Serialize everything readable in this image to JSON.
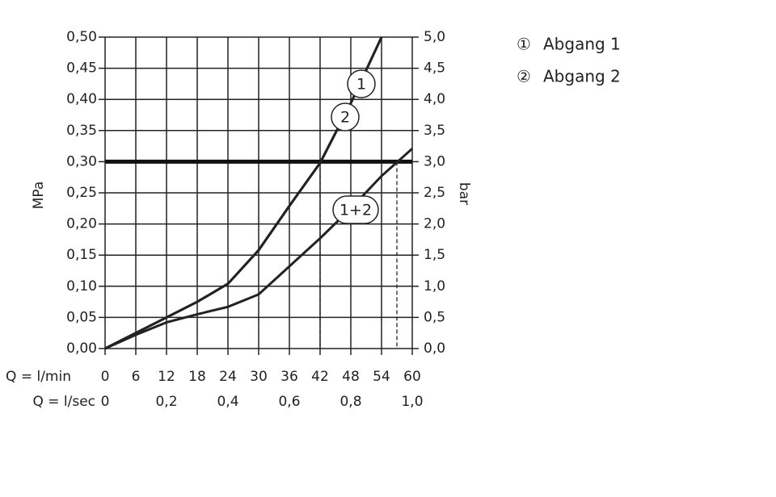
{
  "chart_data": {
    "type": "line",
    "x_label": "Q = l/min",
    "x2_label": "Q = l/sec",
    "y_label": "MPa",
    "y2_label": "bar",
    "x": [
      0,
      6,
      12,
      18,
      24,
      30,
      36,
      42,
      48,
      54,
      60
    ],
    "series": [
      {
        "name": "Abgang 1",
        "symbol": "①",
        "label": "1",
        "color": "#222",
        "values": [
          0,
          0.025,
          0.05,
          0.075,
          0.104,
          0.158,
          0.229,
          0.298,
          0.394,
          0.5,
          null
        ]
      },
      {
        "name": "Abgang 2",
        "symbol": "②",
        "label": "2",
        "color": "#222",
        "values": [
          0,
          0.025,
          0.05,
          0.075,
          0.104,
          0.158,
          0.229,
          0.298,
          0.394,
          0.5,
          null
        ]
      },
      {
        "label": "1+2",
        "color": "#222",
        "values": [
          0,
          0.022,
          0.042,
          0.055,
          0.067,
          0.087,
          0.132,
          0.177,
          0.225,
          0.277,
          0.321
        ]
      }
    ],
    "reference_y": 0.3,
    "reference_x": [
      42,
      57
    ],
    "xlim": [
      0,
      60
    ],
    "xticks": [
      0,
      6,
      12,
      18,
      24,
      30,
      36,
      42,
      48,
      54,
      60
    ],
    "x2lim": [
      0,
      1
    ],
    "x2ticks": [
      0,
      {
        "value": 0.2,
        "label": "0,2"
      },
      {
        "value": 0.4,
        "label": "0,4"
      },
      {
        "value": 0.6,
        "label": "0,6"
      },
      {
        "value": 0.8,
        "label": "0,8"
      },
      {
        "value": 1,
        "label": "1,0"
      }
    ],
    "ylim": [
      0,
      0.5
    ],
    "yticks": [
      {
        "value": 0,
        "label": "0,00"
      },
      {
        "value": 0.05,
        "label": "0,05"
      },
      {
        "value": 0.1,
        "label": "0,10"
      },
      {
        "value": 0.15,
        "label": "0,15"
      },
      {
        "value": 0.2,
        "label": "0,20"
      },
      {
        "value": 0.25,
        "label": "0,25"
      },
      {
        "value": 0.3,
        "label": "0,30"
      },
      {
        "value": 0.35,
        "label": "0,35"
      },
      {
        "value": 0.4,
        "label": "0,40"
      },
      {
        "value": 0.45,
        "label": "0,45"
      },
      {
        "value": 0.5,
        "label": "0,50"
      }
    ],
    "y2lim": [
      0,
      5
    ],
    "y2ticks": [
      {
        "value": 0,
        "label": "0,0"
      },
      {
        "value": 0.5,
        "label": "0,5"
      },
      {
        "value": 1,
        "label": "1,0"
      },
      {
        "value": 1.5,
        "label": "1,5"
      },
      {
        "value": 2,
        "label": "2,0"
      },
      {
        "value": 2.5,
        "label": "2,5"
      },
      {
        "value": 3,
        "label": "3,0"
      },
      {
        "value": 3.5,
        "label": "3,5"
      },
      {
        "value": 4,
        "label": "4,0"
      },
      {
        "value": 4.5,
        "label": "4,5"
      },
      {
        "value": 5,
        "label": "5,0"
      }
    ],
    "grid": true
  }
}
